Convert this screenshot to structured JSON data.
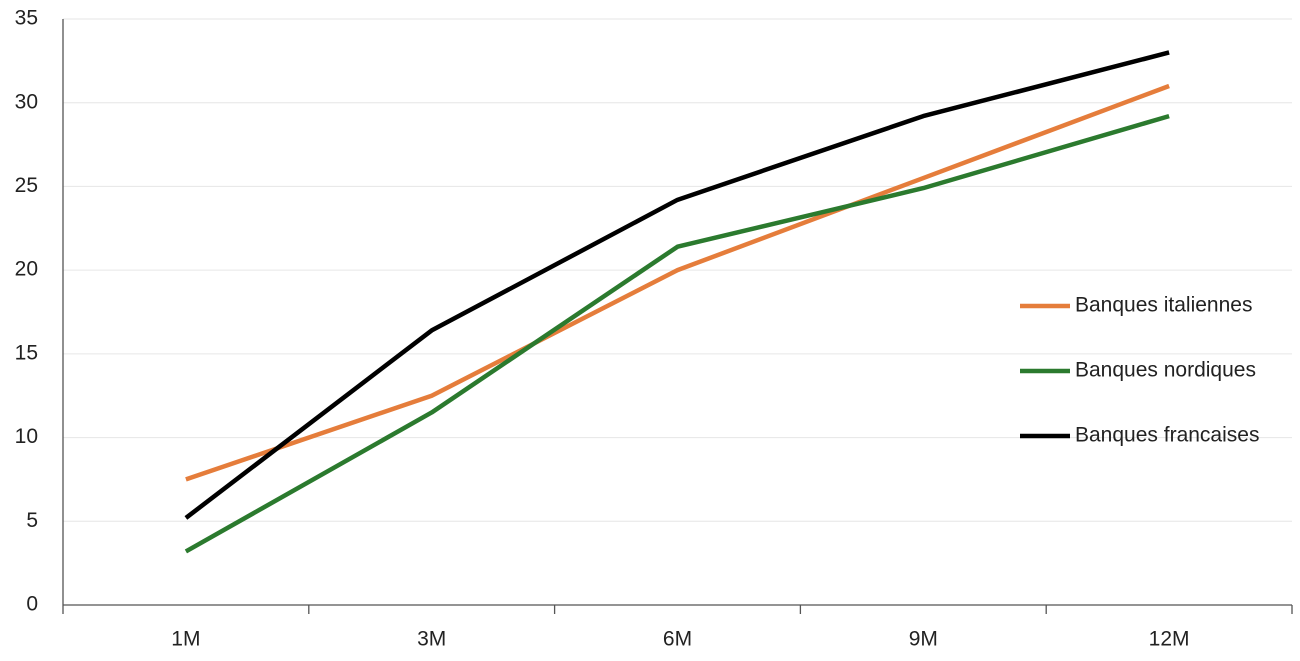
{
  "chart_data": {
    "type": "line",
    "categories": [
      "1M",
      "3M",
      "6M",
      "9M",
      "12M"
    ],
    "series": [
      {
        "name": "Banques italiennes",
        "color": "#e57d3b",
        "values": [
          7.5,
          12.5,
          20,
          25.5,
          31
        ]
      },
      {
        "name": "Banques nordiques",
        "color": "#2b7a2e",
        "values": [
          3.2,
          11.5,
          21.4,
          24.9,
          29.2
        ]
      },
      {
        "name": "Banques francaises",
        "color": "#000000",
        "values": [
          5.2,
          16.4,
          24.2,
          29.2,
          33
        ]
      }
    ],
    "ylim": [
      0,
      35
    ],
    "yticks": [
      0,
      5,
      10,
      15,
      20,
      25,
      30,
      35
    ],
    "grid": true,
    "legend": "right"
  }
}
